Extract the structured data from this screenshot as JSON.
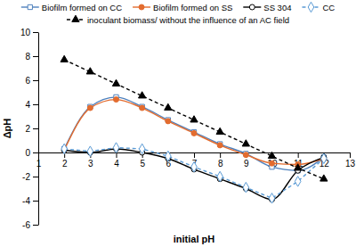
{
  "chart_data": {
    "type": "line",
    "x_label": "initial pH",
    "y_label": "ΔpH",
    "x": [
      2,
      3,
      4,
      5,
      6,
      7,
      8,
      9,
      10,
      11,
      12
    ],
    "xlim": [
      1,
      13
    ],
    "xticks": [
      1,
      2,
      3,
      4,
      5,
      6,
      7,
      8,
      9,
      10,
      11,
      12,
      13
    ],
    "ylim": [
      -6,
      10
    ],
    "yticks": [
      -6,
      -4,
      -2,
      0,
      2,
      4,
      6,
      8,
      10
    ],
    "grid": false,
    "legend": "top",
    "series": [
      {
        "name": "Biofilm formed on CC",
        "color": "#4f81bd",
        "marker": "square-open",
        "line_style": "solid",
        "values": [
          0.3,
          3.8,
          4.6,
          3.8,
          2.7,
          1.7,
          0.7,
          -0.1,
          -1.2,
          -1.5,
          -0.4
        ]
      },
      {
        "name": "Biofilm formed on SS",
        "color": "#e36c2f",
        "marker": "circle",
        "line_style": "solid",
        "values": [
          0.2,
          3.7,
          4.4,
          3.7,
          2.6,
          1.6,
          0.6,
          -0.2,
          -0.9,
          -1.0,
          -0.5
        ]
      },
      {
        "name": "SS 304",
        "color": "#000000",
        "marker": "circle-open",
        "line_style": "solid",
        "values": [
          0.2,
          0.0,
          0.3,
          0.0,
          -0.5,
          -1.4,
          -2.2,
          -3.0,
          -3.9,
          -1.5,
          -0.4
        ]
      },
      {
        "name": "CC",
        "color": "#5b9bd5",
        "marker": "diamond-open",
        "line_style": "dashed",
        "values": [
          0.3,
          0.1,
          0.4,
          0.3,
          -0.3,
          -1.2,
          -2.0,
          -2.9,
          -3.8,
          -2.4,
          -0.5
        ]
      },
      {
        "name": "inoculant biomass/ without the influence of an AC field",
        "color": "#000000",
        "marker": "triangle",
        "line_style": "dashed",
        "values": [
          7.7,
          6.7,
          5.7,
          4.7,
          3.7,
          2.7,
          1.7,
          0.7,
          -0.3,
          -1.3,
          -2.2
        ]
      }
    ]
  }
}
